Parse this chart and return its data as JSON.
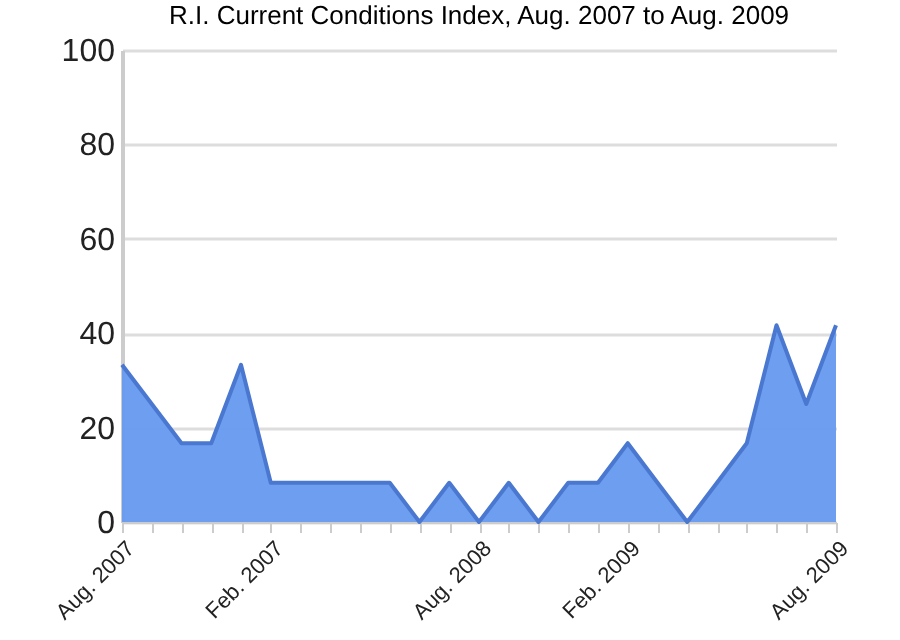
{
  "chart_data": {
    "type": "area",
    "title": "R.I. Current Conditions Index, Aug. 2007 to Aug. 2009",
    "categories": [
      "Aug. 2007",
      null,
      null,
      null,
      null,
      "Feb. 2007",
      null,
      null,
      null,
      null,
      null,
      null,
      "Aug. 2008",
      null,
      null,
      null,
      null,
      "Feb. 2009",
      null,
      null,
      null,
      null,
      null,
      null,
      "Aug. 2009"
    ],
    "series": [
      {
        "color": "#6699ee",
        "values": [
          33.3,
          25,
          16.7,
          16.7,
          33.3,
          8.3,
          8.3,
          8.3,
          8.3,
          8.3,
          0,
          8.3,
          0,
          8.3,
          0,
          8.3,
          8.3,
          16.7,
          8.3,
          0,
          8.3,
          16.7,
          41.7,
          25,
          41.7
        ]
      }
    ],
    "ylim": [
      0,
      100
    ],
    "yticks": [
      0,
      20,
      40,
      60,
      80,
      100
    ],
    "grid": "y"
  }
}
